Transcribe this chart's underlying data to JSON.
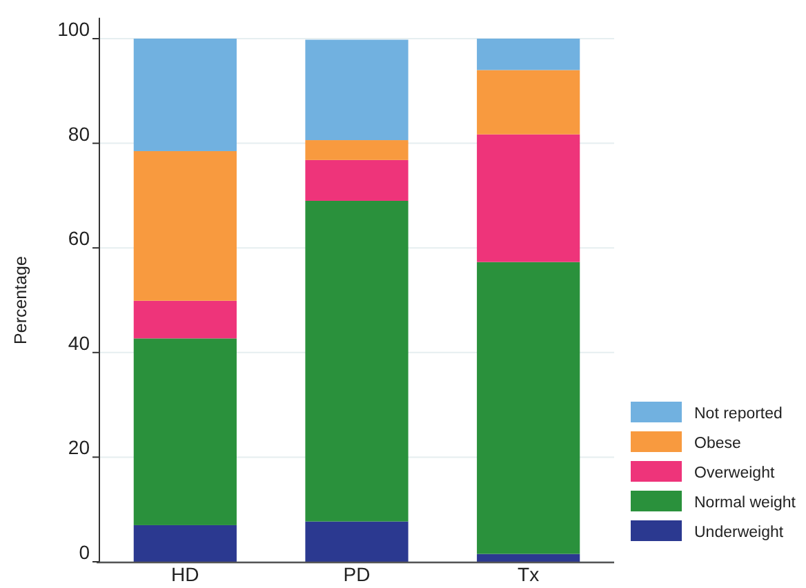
{
  "chart_data": {
    "type": "bar",
    "ylabel": "Percentage",
    "categories": [
      "HD",
      "PD",
      "Tx"
    ],
    "stacked": true,
    "series": [
      {
        "name": "Underweight",
        "color": "#2b3990",
        "values": [
          7.0,
          7.7,
          1.5
        ]
      },
      {
        "name": "Normal weight",
        "color": "#2a913c",
        "values": [
          35.7,
          61.3,
          55.8
        ]
      },
      {
        "name": "Overweight",
        "color": "#ee347a",
        "values": [
          7.2,
          7.8,
          24.4
        ]
      },
      {
        "name": "Obese",
        "color": "#f89a3f",
        "values": [
          28.6,
          3.8,
          12.3
        ]
      },
      {
        "name": "Not reported",
        "color": "#71b1e0",
        "values": [
          21.5,
          19.2,
          6.0
        ]
      }
    ],
    "ylim": [
      0,
      104
    ],
    "yticks": [
      0,
      20,
      40,
      60,
      80,
      100
    ],
    "grid": "y",
    "legend": "bottom right"
  }
}
